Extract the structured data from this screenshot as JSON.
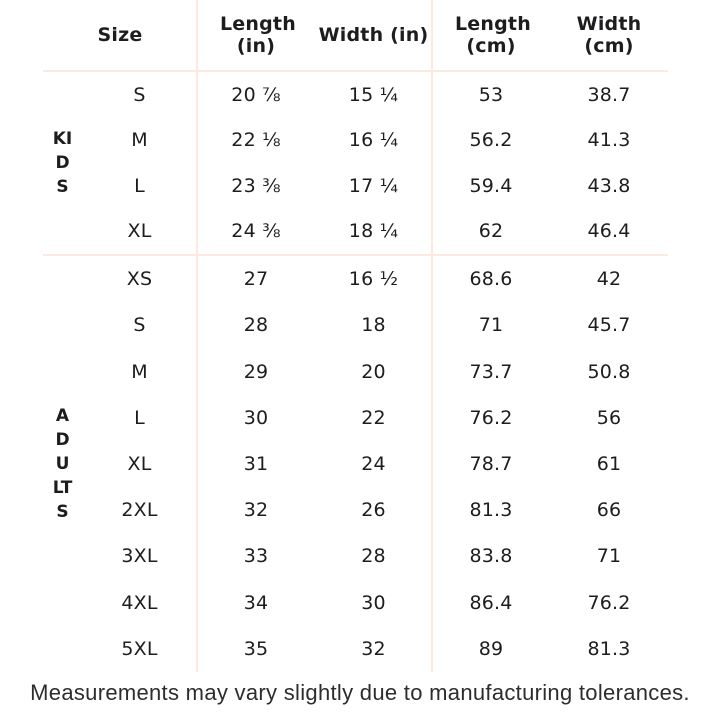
{
  "colors": {
    "background": "#ffffff",
    "divider_line": "#fce9e0",
    "table_text": "#1d1d1f",
    "footer_text": "#2d2d2d"
  },
  "table": {
    "headers": {
      "size": "Size",
      "length_in": "Length (in)",
      "width_in": "Width (in)",
      "length_cm": "Length (cm)",
      "width_cm": "Width (cm)"
    },
    "sections": [
      {
        "label": "KIDS",
        "rows": [
          {
            "size": "S",
            "length_in": "20 ⅞",
            "width_in": "15 ¼",
            "length_cm": "53",
            "width_cm": "38.7"
          },
          {
            "size": "M",
            "length_in": "22 ⅛",
            "width_in": "16 ¼",
            "length_cm": "56.2",
            "width_cm": "41.3"
          },
          {
            "size": "L",
            "length_in": "23 ⅜",
            "width_in": "17 ¼",
            "length_cm": "59.4",
            "width_cm": "43.8"
          },
          {
            "size": "XL",
            "length_in": "24 ⅜",
            "width_in": "18 ¼",
            "length_cm": "62",
            "width_cm": "46.4"
          }
        ]
      },
      {
        "label": "ADULTS",
        "rows": [
          {
            "size": "XS",
            "length_in": "27",
            "width_in": "16 ½",
            "length_cm": "68.6",
            "width_cm": "42"
          },
          {
            "size": "S",
            "length_in": "28",
            "width_in": "18",
            "length_cm": "71",
            "width_cm": "45.7"
          },
          {
            "size": "M",
            "length_in": "29",
            "width_in": "20",
            "length_cm": "73.7",
            "width_cm": "50.8"
          },
          {
            "size": "L",
            "length_in": "30",
            "width_in": "22",
            "length_cm": "76.2",
            "width_cm": "56"
          },
          {
            "size": "XL",
            "length_in": "31",
            "width_in": "24",
            "length_cm": "78.7",
            "width_cm": "61"
          },
          {
            "size": "2XL",
            "length_in": "32",
            "width_in": "26",
            "length_cm": "81.3",
            "width_cm": "66"
          },
          {
            "size": "3XL",
            "length_in": "33",
            "width_in": "28",
            "length_cm": "83.8",
            "width_cm": "71"
          },
          {
            "size": "4XL",
            "length_in": "34",
            "width_in": "30",
            "length_cm": "86.4",
            "width_cm": "76.2"
          },
          {
            "size": "5XL",
            "length_in": "35",
            "width_in": "32",
            "length_cm": "89",
            "width_cm": "81.3"
          }
        ]
      }
    ]
  },
  "footer": {
    "note": "Measurements may vary slightly due to manufacturing tolerances."
  }
}
